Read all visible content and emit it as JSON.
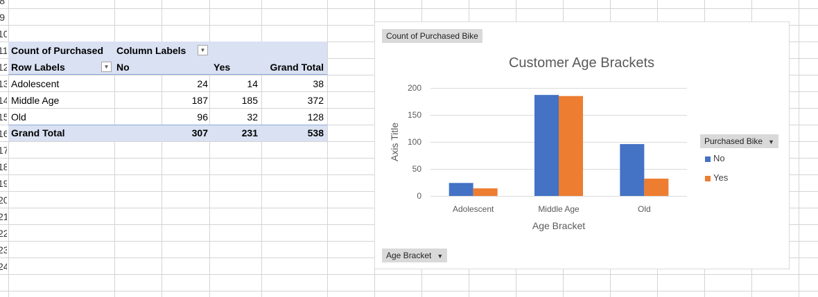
{
  "row_numbers": [
    "8",
    "9",
    "10",
    "11",
    "12",
    "13",
    "14",
    "15",
    "16",
    "17",
    "18",
    "19",
    "20",
    "21",
    "22",
    "23",
    "24"
  ],
  "pivot": {
    "header_left": "Count of Purchased",
    "header_right": "Column Labels",
    "row_labels": "Row Labels",
    "cols": [
      "No",
      "Yes",
      "Grand Total"
    ],
    "rows": [
      {
        "label": "Adolescent",
        "no": "24",
        "yes": "14",
        "total": "38"
      },
      {
        "label": "Middle Age",
        "no": "187",
        "yes": "185",
        "total": "372"
      },
      {
        "label": "Old",
        "no": "96",
        "yes": "32",
        "total": "128"
      }
    ],
    "grand_total": {
      "label": "Grand Total",
      "no": "307",
      "yes": "231",
      "total": "538"
    }
  },
  "chart_buttons": {
    "values_field": "Count of Purchased Bike",
    "legend_field": "Purchased Bike",
    "axis_field": "Age Bracket"
  },
  "chart_data": {
    "type": "bar",
    "title": "Customer Age Brackets",
    "xlabel": "Age Bracket",
    "ylabel": "Axis Title",
    "categories": [
      "Adolescent",
      "Middle Age",
      "Old"
    ],
    "series": [
      {
        "name": "No",
        "values": [
          24,
          187,
          96
        ],
        "color": "#4472c4"
      },
      {
        "name": "Yes",
        "values": [
          14,
          185,
          32
        ],
        "color": "#ed7d31"
      }
    ],
    "ylim": [
      0,
      200
    ],
    "yticks": [
      0,
      50,
      100,
      150,
      200
    ],
    "grid": true,
    "legend": "right"
  },
  "colors": {
    "pivot_band": "#d9e1f2",
    "grid_line": "#d4d4d4"
  }
}
